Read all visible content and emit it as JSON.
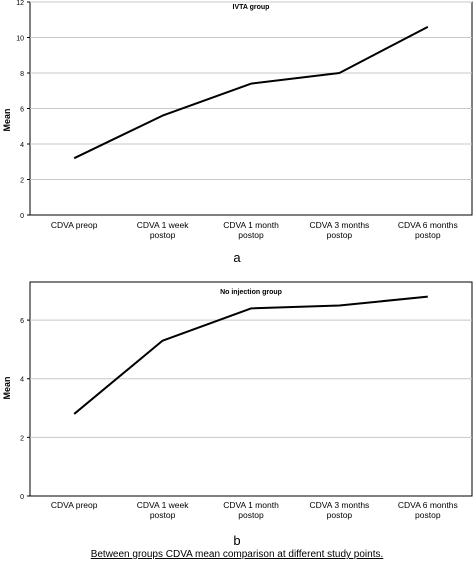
{
  "caption": "Between groups CDVA mean comparison at different study points.",
  "chart_data": [
    {
      "type": "line",
      "panel_label": "a",
      "title": "IVTA group",
      "ylabel": "Mean",
      "xlabel": "",
      "categories": [
        [
          "CDVA preop"
        ],
        [
          "CDVA 1 week",
          "postop"
        ],
        [
          "CDVA 1 month",
          "postop"
        ],
        [
          "CDVA 3 months",
          "postop"
        ],
        [
          "CDVA 6 months",
          "postop"
        ]
      ],
      "values": [
        3.2,
        5.6,
        7.4,
        8.0,
        10.6
      ],
      "ylim": [
        0,
        12
      ],
      "yticks": [
        0,
        2,
        4,
        6,
        8,
        10,
        12
      ],
      "grid": true,
      "line_color": "#000000",
      "grid_color": "#c8c8c8"
    },
    {
      "type": "line",
      "panel_label": "b",
      "title": "No injection group",
      "ylabel": "Mean",
      "xlabel": "",
      "categories": [
        [
          "CDVA preop"
        ],
        [
          "CDVA 1 week",
          "postop"
        ],
        [
          "CDVA 1 month",
          "postop"
        ],
        [
          "CDVA 3 months",
          "postop"
        ],
        [
          "CDVA 6 months",
          "postop"
        ]
      ],
      "values": [
        2.8,
        5.3,
        6.4,
        6.5,
        6.8
      ],
      "ylim": [
        0,
        7.3
      ],
      "yticks": [
        0,
        2,
        4,
        6
      ],
      "grid": true,
      "line_color": "#000000",
      "grid_color": "#c8c8c8"
    }
  ]
}
